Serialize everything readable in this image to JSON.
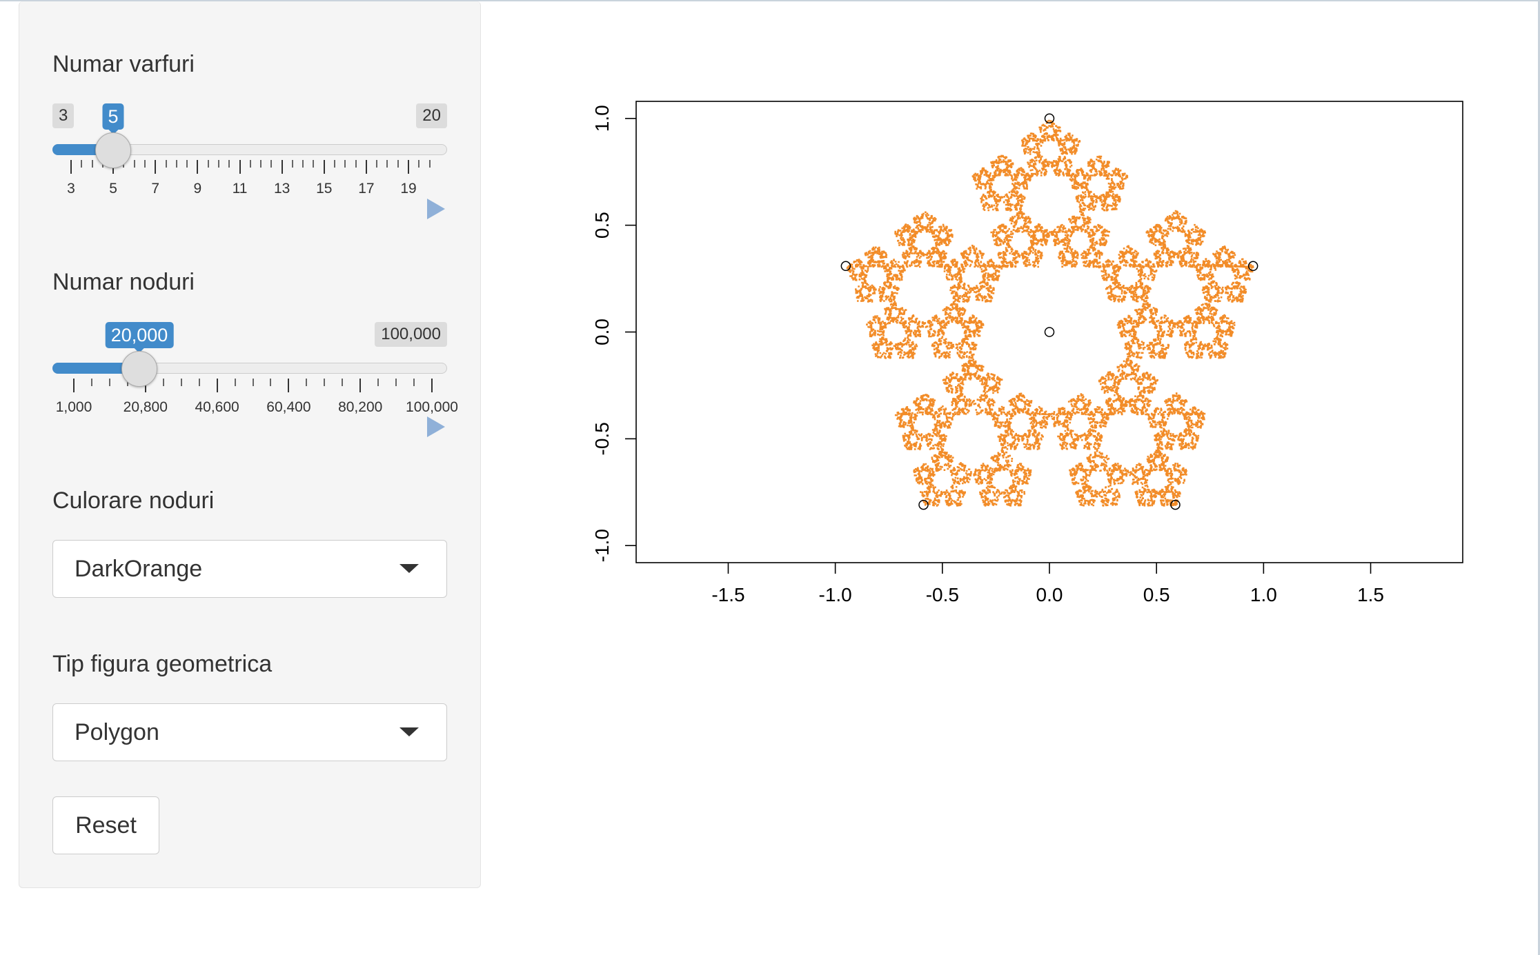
{
  "sidebar": {
    "vertices": {
      "label": "Numar varfuri",
      "min": "3",
      "max": "20",
      "value": "5",
      "min_val": 3,
      "max_val": 20,
      "current": 5,
      "ticks": [
        "3",
        "5",
        "7",
        "9",
        "11",
        "13",
        "15",
        "17",
        "19"
      ]
    },
    "nodes": {
      "label": "Numar noduri",
      "max": "100,000",
      "value": "20,000",
      "min_val": 1000,
      "max_val": 100000,
      "current": 20000,
      "ticks": [
        "1,000",
        "20,800",
        "40,600",
        "60,400",
        "80,200",
        "100,000"
      ]
    },
    "color": {
      "label": "Culorare noduri",
      "selected": "DarkOrange"
    },
    "shape": {
      "label": "Tip figura geometrica",
      "selected": "Polygon"
    },
    "reset_label": "Reset"
  },
  "chart_data": {
    "type": "scatter",
    "title": "",
    "xlabel": "",
    "ylabel": "",
    "xlim": [
      -1.93,
      1.93
    ],
    "ylim": [
      -1.08,
      1.08
    ],
    "x_ticks": [
      "-1.5",
      "-1.0",
      "-0.5",
      "0.0",
      "0.5",
      "1.0",
      "1.5"
    ],
    "y_ticks": [
      "-1.0",
      "-0.5",
      "0.0",
      "0.5",
      "1.0"
    ],
    "point_color": "#f28c28",
    "depicted": "chaos game fractal of a regular pentagon, 20000 points",
    "vertices": [
      {
        "x": 0.0,
        "y": 1.0
      },
      {
        "x": 0.951,
        "y": 0.309
      },
      {
        "x": 0.588,
        "y": -0.809
      },
      {
        "x": -0.588,
        "y": -0.809
      },
      {
        "x": -0.951,
        "y": 0.309
      }
    ],
    "center": {
      "x": 0.0,
      "y": 0.0
    },
    "n_points": 20000
  }
}
